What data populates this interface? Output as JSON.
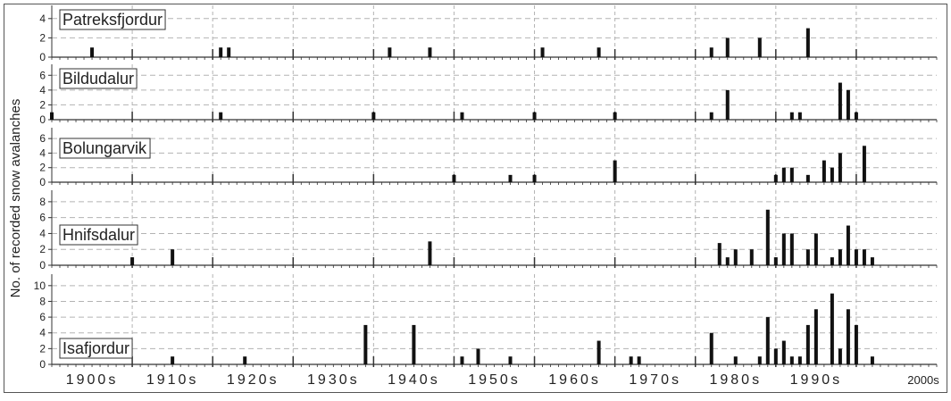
{
  "chart_data": {
    "type": "bar",
    "ylabel": "No. of recorded snow avalanches",
    "xlabel": "",
    "x_unit": "year",
    "xlim": [
      1895,
      2005
    ],
    "decade_labels": [
      "1900s",
      "1910s",
      "1920s",
      "1930s",
      "1940s",
      "1950s",
      "1960s",
      "1970s",
      "1980s",
      "1990s",
      "2000s"
    ],
    "panels": [
      {
        "name": "Patreksfjordur",
        "yticks": [
          0,
          2,
          4
        ],
        "ylim": [
          0,
          5
        ],
        "bars": [
          {
            "x": 1900,
            "y": 1
          },
          {
            "x": 1916,
            "y": 1
          },
          {
            "x": 1917,
            "y": 1
          },
          {
            "x": 1937,
            "y": 1
          },
          {
            "x": 1942,
            "y": 1
          },
          {
            "x": 1956,
            "y": 1
          },
          {
            "x": 1963,
            "y": 1
          },
          {
            "x": 1977,
            "y": 1
          },
          {
            "x": 1979,
            "y": 2
          },
          {
            "x": 1983,
            "y": 2
          },
          {
            "x": 1989,
            "y": 3
          }
        ]
      },
      {
        "name": "Bildudalur",
        "yticks": [
          0,
          2,
          4,
          6
        ],
        "ylim": [
          0,
          7
        ],
        "bars": [
          {
            "x": 1895,
            "y": 1
          },
          {
            "x": 1916,
            "y": 1
          },
          {
            "x": 1935,
            "y": 1
          },
          {
            "x": 1946,
            "y": 1
          },
          {
            "x": 1955,
            "y": 1
          },
          {
            "x": 1965,
            "y": 1
          },
          {
            "x": 1977,
            "y": 1
          },
          {
            "x": 1979,
            "y": 4
          },
          {
            "x": 1987,
            "y": 1
          },
          {
            "x": 1988,
            "y": 1
          },
          {
            "x": 1993,
            "y": 5
          },
          {
            "x": 1994,
            "y": 4
          },
          {
            "x": 1995,
            "y": 1
          }
        ]
      },
      {
        "name": "Bolungarvik",
        "yticks": [
          0,
          2,
          4,
          6
        ],
        "ylim": [
          0,
          7
        ],
        "bars": [
          {
            "x": 1945,
            "y": 1
          },
          {
            "x": 1952,
            "y": 1
          },
          {
            "x": 1955,
            "y": 1
          },
          {
            "x": 1965,
            "y": 3
          },
          {
            "x": 1985,
            "y": 1
          },
          {
            "x": 1986,
            "y": 2
          },
          {
            "x": 1987,
            "y": 2
          },
          {
            "x": 1989,
            "y": 1
          },
          {
            "x": 1991,
            "y": 3
          },
          {
            "x": 1992,
            "y": 2
          },
          {
            "x": 1993,
            "y": 4
          },
          {
            "x": 1996,
            "y": 5
          }
        ]
      },
      {
        "name": "Hnifsdalur",
        "yticks": [
          0,
          2,
          4,
          6,
          8
        ],
        "ylim": [
          0,
          9
        ],
        "bars": [
          {
            "x": 1905,
            "y": 1
          },
          {
            "x": 1910,
            "y": 2
          },
          {
            "x": 1942,
            "y": 3
          },
          {
            "x": 1978,
            "y": 2.8
          },
          {
            "x": 1979,
            "y": 1
          },
          {
            "x": 1980,
            "y": 2
          },
          {
            "x": 1982,
            "y": 2
          },
          {
            "x": 1984,
            "y": 7
          },
          {
            "x": 1985,
            "y": 1
          },
          {
            "x": 1986,
            "y": 4
          },
          {
            "x": 1987,
            "y": 4
          },
          {
            "x": 1989,
            "y": 2
          },
          {
            "x": 1990,
            "y": 4
          },
          {
            "x": 1992,
            "y": 1
          },
          {
            "x": 1993,
            "y": 2
          },
          {
            "x": 1994,
            "y": 5
          },
          {
            "x": 1995,
            "y": 2
          },
          {
            "x": 1996,
            "y": 2
          },
          {
            "x": 1997,
            "y": 1
          }
        ]
      },
      {
        "name": "Isafjordur",
        "yticks": [
          0,
          2,
          4,
          6,
          8,
          10
        ],
        "ylim": [
          0,
          11
        ],
        "bars": [
          {
            "x": 1910,
            "y": 1
          },
          {
            "x": 1919,
            "y": 1
          },
          {
            "x": 1934,
            "y": 5
          },
          {
            "x": 1940,
            "y": 5
          },
          {
            "x": 1946,
            "y": 1
          },
          {
            "x": 1948,
            "y": 2
          },
          {
            "x": 1952,
            "y": 1
          },
          {
            "x": 1963,
            "y": 3
          },
          {
            "x": 1967,
            "y": 1
          },
          {
            "x": 1968,
            "y": 1
          },
          {
            "x": 1977,
            "y": 4
          },
          {
            "x": 1980,
            "y": 1
          },
          {
            "x": 1983,
            "y": 1
          },
          {
            "x": 1984,
            "y": 6
          },
          {
            "x": 1985,
            "y": 2
          },
          {
            "x": 1986,
            "y": 3
          },
          {
            "x": 1987,
            "y": 1
          },
          {
            "x": 1988,
            "y": 1
          },
          {
            "x": 1989,
            "y": 5
          },
          {
            "x": 1990,
            "y": 7
          },
          {
            "x": 1992,
            "y": 9
          },
          {
            "x": 1993,
            "y": 2
          },
          {
            "x": 1994,
            "y": 7
          },
          {
            "x": 1995,
            "y": 5
          },
          {
            "x": 1997,
            "y": 1
          }
        ]
      }
    ],
    "grid": true,
    "colors": {
      "bar": "#111111",
      "grid": "#b3b3b3",
      "axis": "#333333"
    }
  }
}
